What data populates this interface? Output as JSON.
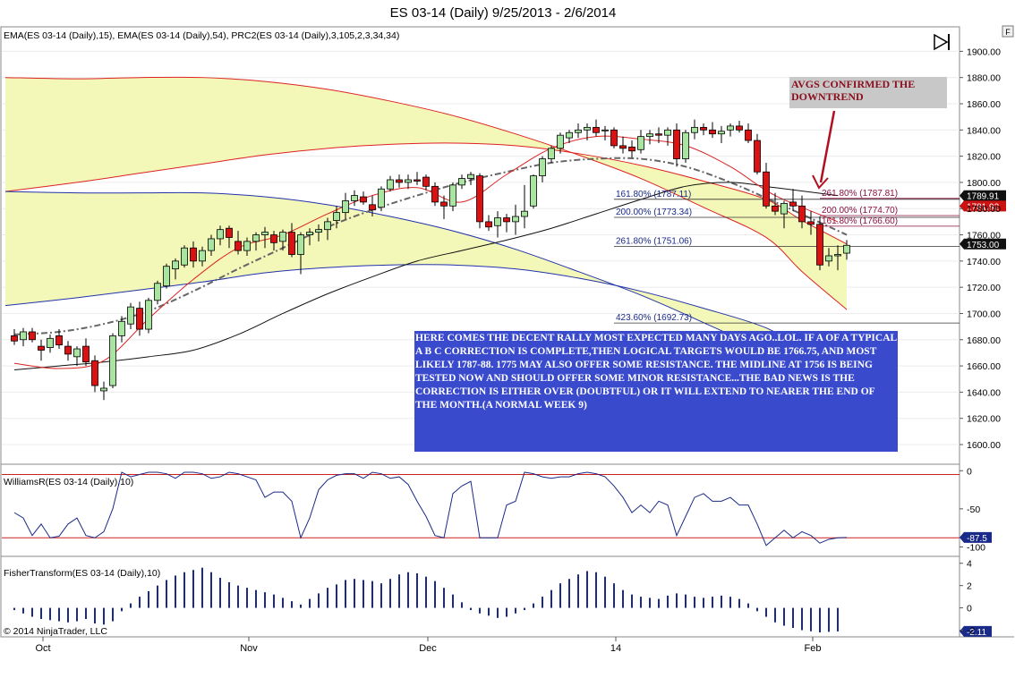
{
  "header": {
    "title": "ES 03-14 (Daily)  9/25/2013 - 2/6/2014",
    "f_button": "F",
    "copyright": "© 2014 NinjaTrader, LLC"
  },
  "colors": {
    "bull": "#a8e6a0",
    "bear": "#dd1111",
    "envelope_outer": "#dd2222",
    "envelope_fill": "#f3f7b8",
    "ema15": "#dd2222",
    "ema54": "#111111",
    "envelope_inner": "#2233aa",
    "midline": "#666666",
    "indicator_line": "#1a2a88",
    "annotation_bg": "#3a4acc",
    "annotation_text": "#ffffff",
    "note_text": "#8a1020",
    "note_bg": "#c8c8c8"
  },
  "chart_data": [
    {
      "type": "candlestick",
      "panel": "price",
      "indicator_label": "EMA(ES 03-14 (Daily),15), EMA(ES 03-14 (Daily),54), PRC2(ES 03-14 (Daily),3,105,2,3,34,34)",
      "ylim": [
        1585,
        1918
      ],
      "yticks": [
        1600,
        1620,
        1640,
        1660,
        1680,
        1700,
        1720,
        1740,
        1760,
        1780,
        1800,
        1820,
        1840,
        1860,
        1880,
        1900
      ],
      "xticks": [
        {
          "label": "Oct",
          "bar": 3
        },
        {
          "label": "Nov",
          "bar": 26
        },
        {
          "label": "Dec",
          "bar": 46
        },
        {
          "label": "14",
          "bar": 67
        },
        {
          "label": "Feb",
          "bar": 89
        }
      ],
      "candles": [
        [
          1683,
          1688,
          1676,
          1679
        ],
        [
          1680,
          1689,
          1675,
          1686
        ],
        [
          1686,
          1689,
          1678,
          1680
        ],
        [
          1675,
          1680,
          1664,
          1672
        ],
        [
          1674,
          1684,
          1670,
          1681
        ],
        [
          1683,
          1688,
          1673,
          1676
        ],
        [
          1675,
          1679,
          1664,
          1669
        ],
        [
          1667,
          1675,
          1660,
          1673
        ],
        [
          1675,
          1681,
          1660,
          1663
        ],
        [
          1664,
          1668,
          1640,
          1645
        ],
        [
          1641,
          1648,
          1634,
          1643
        ],
        [
          1645,
          1685,
          1643,
          1683
        ],
        [
          1683,
          1698,
          1678,
          1694
        ],
        [
          1692,
          1708,
          1688,
          1705
        ],
        [
          1704,
          1709,
          1683,
          1688
        ],
        [
          1688,
          1712,
          1685,
          1710
        ],
        [
          1710,
          1725,
          1707,
          1723
        ],
        [
          1721,
          1738,
          1719,
          1736
        ],
        [
          1734,
          1742,
          1726,
          1740
        ],
        [
          1737,
          1752,
          1735,
          1750
        ],
        [
          1750,
          1755,
          1735,
          1740
        ],
        [
          1740,
          1751,
          1736,
          1748
        ],
        [
          1748,
          1760,
          1744,
          1757
        ],
        [
          1757,
          1767,
          1752,
          1764
        ],
        [
          1765,
          1767,
          1750,
          1758
        ],
        [
          1755,
          1763,
          1745,
          1748
        ],
        [
          1748,
          1758,
          1744,
          1755
        ],
        [
          1755,
          1762,
          1748,
          1760
        ],
        [
          1760,
          1766,
          1750,
          1762
        ],
        [
          1760,
          1763,
          1748,
          1754
        ],
        [
          1755,
          1764,
          1748,
          1762
        ],
        [
          1762,
          1769,
          1743,
          1745
        ],
        [
          1745,
          1762,
          1730,
          1760
        ],
        [
          1760,
          1765,
          1752,
          1762
        ],
        [
          1762,
          1768,
          1755,
          1764
        ],
        [
          1764,
          1773,
          1756,
          1770
        ],
        [
          1771,
          1782,
          1765,
          1777
        ],
        [
          1777,
          1792,
          1772,
          1786
        ],
        [
          1786,
          1794,
          1782,
          1790
        ],
        [
          1789,
          1793,
          1783,
          1785
        ],
        [
          1783,
          1790,
          1774,
          1779
        ],
        [
          1781,
          1797,
          1778,
          1795
        ],
        [
          1795,
          1805,
          1793,
          1802
        ],
        [
          1802,
          1806,
          1796,
          1800
        ],
        [
          1800,
          1806,
          1795,
          1802
        ],
        [
          1802,
          1808,
          1798,
          1801
        ],
        [
          1804,
          1806,
          1794,
          1797
        ],
        [
          1797,
          1800,
          1782,
          1785
        ],
        [
          1785,
          1790,
          1772,
          1782
        ],
        [
          1782,
          1800,
          1778,
          1798
        ],
        [
          1798,
          1806,
          1795,
          1803
        ],
        [
          1803,
          1808,
          1798,
          1806
        ],
        [
          1805,
          1807,
          1765,
          1770
        ],
        [
          1770,
          1775,
          1763,
          1766
        ],
        [
          1767,
          1778,
          1758,
          1773
        ],
        [
          1773,
          1776,
          1762,
          1770
        ],
        [
          1770,
          1783,
          1760,
          1774
        ],
        [
          1774,
          1798,
          1765,
          1778
        ],
        [
          1782,
          1806,
          1780,
          1805
        ],
        [
          1805,
          1820,
          1800,
          1818
        ],
        [
          1818,
          1828,
          1815,
          1826
        ],
        [
          1826,
          1838,
          1822,
          1836
        ],
        [
          1834,
          1840,
          1830,
          1838
        ],
        [
          1838,
          1845,
          1834,
          1840
        ],
        [
          1840,
          1845,
          1832,
          1842
        ],
        [
          1842,
          1848,
          1835,
          1838
        ],
        [
          1840,
          1843,
          1832,
          1840
        ],
        [
          1840,
          1842,
          1826,
          1828
        ],
        [
          1828,
          1835,
          1822,
          1826
        ],
        [
          1827,
          1832,
          1819,
          1824
        ],
        [
          1825,
          1840,
          1822,
          1835
        ],
        [
          1835,
          1840,
          1829,
          1837
        ],
        [
          1837,
          1842,
          1830,
          1836
        ],
        [
          1836,
          1842,
          1828,
          1840
        ],
        [
          1840,
          1845,
          1812,
          1818
        ],
        [
          1818,
          1840,
          1815,
          1838
        ],
        [
          1838,
          1848,
          1833,
          1842
        ],
        [
          1842,
          1845,
          1836,
          1840
        ],
        [
          1840,
          1846,
          1834,
          1837
        ],
        [
          1837,
          1843,
          1830,
          1839
        ],
        [
          1840,
          1845,
          1835,
          1843
        ],
        [
          1843,
          1847,
          1838,
          1840
        ],
        [
          1840,
          1845,
          1830,
          1832
        ],
        [
          1832,
          1837,
          1806,
          1808
        ],
        [
          1808,
          1815,
          1780,
          1782
        ],
        [
          1782,
          1792,
          1775,
          1778
        ],
        [
          1776,
          1786,
          1765,
          1784
        ],
        [
          1785,
          1795,
          1778,
          1782
        ],
        [
          1782,
          1790,
          1765,
          1770
        ],
        [
          1770,
          1778,
          1760,
          1768
        ],
        [
          1768,
          1774,
          1733,
          1737
        ],
        [
          1740,
          1750,
          1736,
          1744
        ],
        [
          1744,
          1752,
          1733,
          1745
        ],
        [
          1746,
          1756,
          1741,
          1752
        ]
      ],
      "envelope_upper": [
        [
          1793,
          1880
        ],
        [
          1800,
          1879
        ],
        [
          1807,
          1880
        ],
        [
          1814,
          1880
        ],
        [
          1821,
          1877
        ],
        [
          1826,
          1871
        ],
        [
          1829,
          1862
        ],
        [
          1830,
          1851
        ],
        [
          1828,
          1837
        ],
        [
          1822,
          1821
        ],
        [
          1813,
          1803
        ],
        [
          1801,
          1781
        ],
        [
          1787,
          1758
        ],
        [
          1771,
          1732
        ],
        [
          1753,
          1703
        ]
      ],
      "envelope_lower": [
        [
          1706,
          1793
        ],
        [
          1712,
          1792
        ],
        [
          1718,
          1792
        ],
        [
          1724,
          1792
        ],
        [
          1731,
          1789
        ],
        [
          1735,
          1783
        ],
        [
          1737,
          1774
        ],
        [
          1737,
          1763
        ],
        [
          1734,
          1749
        ],
        [
          1727,
          1732
        ],
        [
          1717,
          1714
        ],
        [
          1704,
          1693
        ],
        [
          1689,
          1670
        ],
        [
          1672,
          1645
        ],
        [
          1652,
          1616
        ]
      ],
      "envelope_x": [
        0,
        7,
        14,
        21,
        28,
        35,
        42,
        49,
        56,
        63,
        70,
        77,
        84,
        88,
        93
      ],
      "ema15": [
        1662,
        1658,
        1664,
        1696,
        1726,
        1750,
        1760,
        1776,
        1790,
        1796,
        1785,
        1806,
        1826,
        1835,
        1833,
        1828,
        1812,
        1790,
        1770
      ],
      "ema15_x": [
        0,
        5,
        10,
        15,
        20,
        25,
        30,
        35,
        40,
        45,
        50,
        55,
        60,
        65,
        70,
        75,
        80,
        85,
        92
      ],
      "ema54": [
        1657,
        1660,
        1663,
        1667,
        1672,
        1684,
        1700,
        1715,
        1728,
        1740,
        1748,
        1756,
        1765,
        1776,
        1787,
        1797,
        1800,
        1796,
        1790
      ],
      "ema54_x": [
        0,
        5,
        10,
        15,
        20,
        25,
        30,
        35,
        40,
        45,
        50,
        55,
        60,
        65,
        70,
        75,
        80,
        85,
        92
      ],
      "midline": [
        1684,
        1686,
        1692,
        1702,
        1717,
        1734,
        1750,
        1766,
        1779,
        1790,
        1800,
        1808,
        1815,
        1818,
        1818,
        1812,
        1800,
        1785,
        1760
      ],
      "midline_x": [
        0,
        5,
        10,
        15,
        20,
        25,
        30,
        35,
        40,
        45,
        50,
        55,
        60,
        65,
        70,
        75,
        80,
        85,
        93
      ],
      "fib_levels": [
        {
          "label": "161.80% (1787.11)",
          "value": 1787.11,
          "side": "left"
        },
        {
          "label": "200.00% (1773.34)",
          "value": 1773.34,
          "side": "left"
        },
        {
          "label": "261.80% (1751.06)",
          "value": 1751.06,
          "side": "left"
        },
        {
          "label": "423.60% (1692.73)",
          "value": 1692.73,
          "side": "left"
        },
        {
          "label": "261.80% (1787.81)",
          "value": 1787.81,
          "side": "right"
        },
        {
          "label": "200.00% (1774.70)",
          "value": 1774.7,
          "side": "right"
        },
        {
          "label": "161.80% (1766.60)",
          "value": 1766.6,
          "side": "right"
        }
      ],
      "price_tags": [
        {
          "label": "1789.91",
          "value": 1789.91,
          "color": "#111111"
        },
        {
          "label": "1781.92",
          "value": 1781.92,
          "color": "#cc1111"
        },
        {
          "label": "1753.00",
          "value": 1753.0,
          "color": "#111111"
        }
      ],
      "annotation": {
        "text": "HERE COMES THE DECENT RALLY MOST EXPECTED MANY DAYS AGO..LOL. IF A OF A TYPICAL A B C  CORRECTION IS COMPLETE,THEN LOGICAL TARGETS WOULD BE 1766.75, AND MOST LIKELY 1787-88. 1775 MAY ALSO OFFER SOME RESISTANCE. THE MIDLINE AT 1756 IS BEING TESTED NOW AND SHOULD OFFER SOME MINOR RESISTANCE...THE BAD NEWS IS THE CORRECTION IS EITHER OVER (DOUBTFUL) OR IT WILL EXTEND TO NEARER THE END OF THE MONTH.(A NORMAL WEEK 9)"
      },
      "note": {
        "text": "AVGS CONFIRMED THE DOWNTREND"
      }
    },
    {
      "type": "line",
      "panel": "williams",
      "indicator_label": "WilliamsR(ES 03-14 (Daily),10)",
      "ylim": [
        -110,
        5
      ],
      "yticks": [
        0,
        -50,
        -100
      ],
      "ref_lines": [
        -5,
        -88
      ],
      "current_label": "-87.5",
      "values": [
        -55,
        -62,
        -85,
        -70,
        -88,
        -86,
        -70,
        -62,
        -85,
        -88,
        -80,
        -50,
        -2,
        -8,
        -5,
        -2,
        -2,
        -4,
        -10,
        -2,
        -2,
        -4,
        -10,
        -8,
        -2,
        -4,
        -8,
        -12,
        -35,
        -28,
        -28,
        -40,
        -88,
        -62,
        -25,
        -12,
        -6,
        -4,
        -4,
        -10,
        -2,
        -4,
        -10,
        -8,
        -18,
        -40,
        -60,
        -85,
        -88,
        -30,
        -20,
        -14,
        -88,
        -88,
        -88,
        -45,
        -40,
        -2,
        -4,
        -8,
        -10,
        -8,
        -8,
        -4,
        -2,
        -4,
        -8,
        -20,
        -35,
        -55,
        -45,
        -55,
        -40,
        -45,
        -85,
        -60,
        -35,
        -30,
        -40,
        -40,
        -35,
        -45,
        -45,
        -70,
        -98,
        -88,
        -78,
        -88,
        -80,
        -85,
        -95,
        -90,
        -88,
        -87.5
      ]
    },
    {
      "type": "bar",
      "panel": "fisher",
      "indicator_label": "FisherTransform(ES 03-14 (Daily),10)",
      "ylim": [
        -2.6,
        4.3
      ],
      "yticks": [
        4,
        2,
        0,
        -2
      ],
      "current_label": "-2.11",
      "values": [
        -0.2,
        -0.5,
        -0.8,
        -1.0,
        -1.1,
        -1.2,
        -1.3,
        -1.2,
        -1.0,
        -1.4,
        -1.5,
        -1.2,
        -0.3,
        0.4,
        1.0,
        1.5,
        2.0,
        2.5,
        2.9,
        3.2,
        3.4,
        3.6,
        3.2,
        2.7,
        2.3,
        2.0,
        1.8,
        1.6,
        1.4,
        1.2,
        0.9,
        0.6,
        0.3,
        0.8,
        1.3,
        1.8,
        2.1,
        2.5,
        2.6,
        2.5,
        2.4,
        2.2,
        2.6,
        3.0,
        3.2,
        3.1,
        2.8,
        2.4,
        1.8,
        1.2,
        0.5,
        -0.2,
        -0.5,
        -0.7,
        -0.9,
        -0.8,
        -0.5,
        -0.2,
        0.4,
        1.0,
        1.6,
        2.2,
        2.6,
        3.0,
        3.3,
        3.2,
        2.8,
        2.2,
        1.6,
        1.2,
        1.0,
        0.9,
        0.8,
        1.1,
        1.3,
        1.2,
        1.0,
        0.9,
        1.0,
        1.1,
        1.0,
        0.8,
        0.4,
        -0.3,
        -0.8,
        -1.3,
        -1.6,
        -1.8,
        -2.0,
        -2.1,
        -2.2,
        -2.15,
        -2.11
      ]
    }
  ]
}
